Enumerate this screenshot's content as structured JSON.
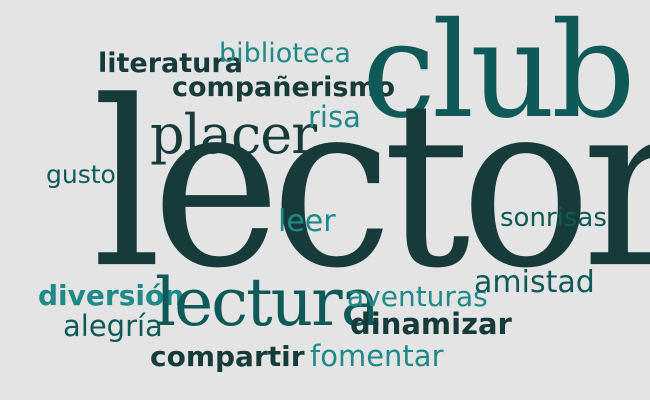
{
  "word_cloud": {
    "background_color": "#e4e4e4",
    "colors": {
      "dark": "#173a3a",
      "teal": "#1f8a87",
      "mid_teal": "#0f5a58"
    },
    "words": {
      "literatura": "literatura",
      "biblioteca": "biblioteca",
      "companerismo": "compañerismo",
      "club": "club",
      "placer": "placer",
      "risa": "risa",
      "gusto": "gusto",
      "lector": "lector",
      "leer": "leer",
      "sonrisas": "sonrisas",
      "diversion": "diversión",
      "lectura": "lectura",
      "aventuras": "aventuras",
      "amistad": "amistad",
      "alegria": "alegría",
      "dinamizar": "dinamizar",
      "compartir": "compartir",
      "fomentar": "fomentar"
    }
  }
}
